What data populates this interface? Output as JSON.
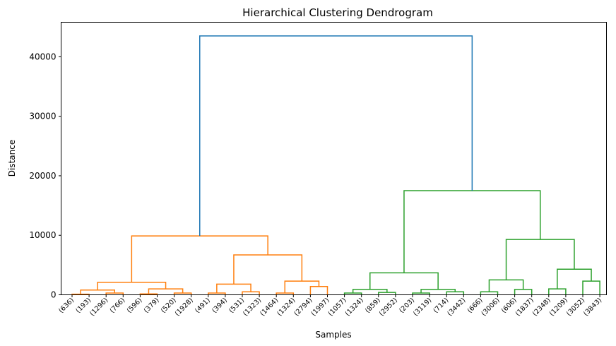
{
  "chart_data": {
    "type": "dendrogram",
    "title": "Hierarchical Clustering Dendrogram",
    "xlabel": "Samples",
    "ylabel": "Distance",
    "ylim": [
      0,
      45800
    ],
    "yticks": [
      0,
      10000,
      20000,
      30000,
      40000
    ],
    "grid": false,
    "colors": {
      "root": "#1f77b4",
      "cluster_orange": "#ff7f0e",
      "cluster_green": "#2ca02c"
    },
    "leaves": [
      "(636)",
      "(193)",
      "(1296)",
      "(766)",
      "(596)",
      "(379)",
      "(520)",
      "(1928)",
      "(491)",
      "(394)",
      "(531)",
      "(1323)",
      "(1464)",
      "(1324)",
      "(2794)",
      "(1997)",
      "(1057)",
      "(1324)",
      "(859)",
      "(2952)",
      "(203)",
      "(3119)",
      "(714)",
      "(3442)",
      "(666)",
      "(3006)",
      "(606)",
      "(1837)",
      "(2348)",
      "(1209)",
      "(3052)",
      "(3843)"
    ],
    "merges": [
      {
        "left": "L0",
        "right": "L1",
        "height": 100,
        "color": "orange"
      },
      {
        "left": "L2",
        "right": "L3",
        "height": 300,
        "color": "orange"
      },
      {
        "left": "M0",
        "right": "M1",
        "height": 800,
        "color": "orange"
      },
      {
        "left": "L4",
        "right": "L5",
        "height": 150,
        "color": "orange"
      },
      {
        "left": "L6",
        "right": "L7",
        "height": 300,
        "color": "orange"
      },
      {
        "left": "M3",
        "right": "M4",
        "height": 1000,
        "color": "orange"
      },
      {
        "left": "M2",
        "right": "M5",
        "height": 2100,
        "color": "orange"
      },
      {
        "left": "L8",
        "right": "L9",
        "height": 300,
        "color": "orange"
      },
      {
        "left": "L10",
        "right": "L11",
        "height": 500,
        "color": "orange"
      },
      {
        "left": "M7",
        "right": "M8",
        "height": 1800,
        "color": "orange"
      },
      {
        "left": "L12",
        "right": "L13",
        "height": 300,
        "color": "orange"
      },
      {
        "left": "L14",
        "right": "L15",
        "height": 1400,
        "color": "orange"
      },
      {
        "left": "M10",
        "right": "M11",
        "height": 2300,
        "color": "orange"
      },
      {
        "left": "M9",
        "right": "M12",
        "height": 6700,
        "color": "orange"
      },
      {
        "left": "M6",
        "right": "M13",
        "height": 9900,
        "color": "orange"
      },
      {
        "left": "L16",
        "right": "L17",
        "height": 300,
        "color": "green"
      },
      {
        "left": "L18",
        "right": "L19",
        "height": 400,
        "color": "green"
      },
      {
        "left": "M15",
        "right": "M16",
        "height": 900,
        "color": "green"
      },
      {
        "left": "L20",
        "right": "L21",
        "height": 300,
        "color": "green"
      },
      {
        "left": "L22",
        "right": "L23",
        "height": 500,
        "color": "green"
      },
      {
        "left": "M18",
        "right": "M19",
        "height": 900,
        "color": "green"
      },
      {
        "left": "M17",
        "right": "M20",
        "height": 3700,
        "color": "green"
      },
      {
        "left": "L24",
        "right": "L25",
        "height": 500,
        "color": "green"
      },
      {
        "left": "L26",
        "right": "L27",
        "height": 900,
        "color": "green"
      },
      {
        "left": "M22",
        "right": "M23",
        "height": 2500,
        "color": "green"
      },
      {
        "left": "L28",
        "right": "L29",
        "height": 1000,
        "color": "green"
      },
      {
        "left": "L30",
        "right": "L31",
        "height": 2300,
        "color": "green"
      },
      {
        "left": "M25",
        "right": "M26",
        "height": 4300,
        "color": "green"
      },
      {
        "left": "M24",
        "right": "M27",
        "height": 9300,
        "color": "green"
      },
      {
        "left": "M21",
        "right": "M28",
        "height": 17500,
        "color": "green"
      },
      {
        "left": "M14",
        "right": "M29",
        "height": 43500,
        "color": "root"
      }
    ]
  }
}
